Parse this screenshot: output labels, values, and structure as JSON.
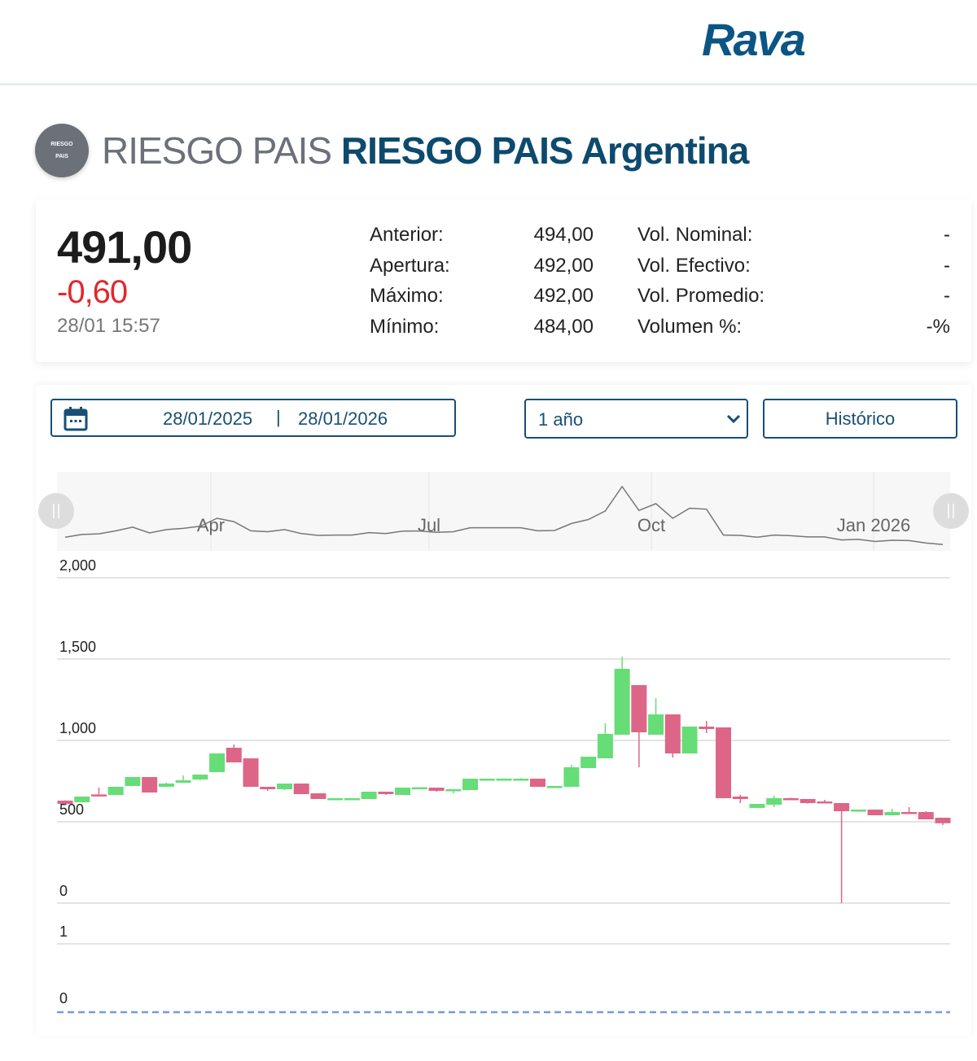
{
  "header": {
    "logo": "Rava"
  },
  "title": {
    "badge_line1": "RIESGO",
    "badge_line2": "PAIS",
    "prefix": "RIESGO PAIS",
    "name": "RIESGO PAIS Argentina"
  },
  "quote": {
    "price": "491,00",
    "change": "-0,60",
    "time": "28/01 15:57",
    "change_color": "#e0282e"
  },
  "stats_left": [
    {
      "label": "Anterior:",
      "value": "494,00"
    },
    {
      "label": "Apertura:",
      "value": "492,00"
    },
    {
      "label": "Máximo:",
      "value": "492,00"
    },
    {
      "label": "Mínimo:",
      "value": "484,00"
    }
  ],
  "stats_right": [
    {
      "label": "Vol. Nominal:",
      "value": "-"
    },
    {
      "label": "Vol. Efectivo:",
      "value": "-"
    },
    {
      "label": "Vol. Promedio:",
      "value": "-"
    },
    {
      "label": "Volumen %:",
      "value": "-%"
    }
  ],
  "controls": {
    "date_from": "28/01/2025",
    "date_sep": "|",
    "date_to": "28/01/2026",
    "range_selected": "1 año",
    "historico_label": "Histórico"
  },
  "chart_data": {
    "type": "candlestick",
    "colors": {
      "up": "#66dd77",
      "down": "#dd6688",
      "volume_line": "#6f9be8"
    },
    "navigator_labels": [
      "Apr",
      "Jul",
      "Oct",
      "Jan 2026"
    ],
    "y_ticks": [
      "2,000",
      "1,500",
      "1,000",
      "500",
      "0"
    ],
    "y_values": [
      2000,
      1500,
      1000,
      500,
      0
    ],
    "ylim": [
      0,
      2000
    ],
    "volume_ticks": [
      "1",
      "0"
    ],
    "volume_values": [
      1,
      0
    ],
    "grid": true,
    "candles_ohlc": [
      [
        630,
        632,
        608,
        610
      ],
      [
        620,
        655,
        618,
        655
      ],
      [
        668,
        710,
        665,
        665
      ],
      [
        665,
        715,
        665,
        715
      ],
      [
        720,
        775,
        720,
        775
      ],
      [
        775,
        775,
        680,
        680
      ],
      [
        715,
        740,
        715,
        735
      ],
      [
        740,
        785,
        740,
        755
      ],
      [
        760,
        790,
        755,
        790
      ],
      [
        805,
        920,
        805,
        920
      ],
      [
        955,
        975,
        865,
        865
      ],
      [
        890,
        890,
        715,
        715
      ],
      [
        715,
        715,
        690,
        700
      ],
      [
        700,
        735,
        695,
        735
      ],
      [
        735,
        735,
        670,
        670
      ],
      [
        675,
        675,
        640,
        640
      ],
      [
        640,
        645,
        640,
        645
      ],
      [
        640,
        645,
        640,
        645
      ],
      [
        640,
        685,
        640,
        685
      ],
      [
        685,
        685,
        665,
        670
      ],
      [
        665,
        710,
        665,
        710
      ],
      [
        710,
        712,
        710,
        712
      ],
      [
        710,
        710,
        685,
        690
      ],
      [
        690,
        700,
        675,
        700
      ],
      [
        695,
        765,
        695,
        765
      ],
      [
        760,
        765,
        758,
        765
      ],
      [
        765,
        768,
        763,
        765
      ],
      [
        765,
        768,
        763,
        765
      ],
      [
        765,
        765,
        715,
        715
      ],
      [
        715,
        720,
        715,
        720
      ],
      [
        715,
        850,
        715,
        835
      ],
      [
        830,
        900,
        830,
        900
      ],
      [
        890,
        1105,
        890,
        1040
      ],
      [
        1035,
        1515,
        1035,
        1440
      ],
      [
        1340,
        1340,
        835,
        1050
      ],
      [
        1035,
        1260,
        1035,
        1160
      ],
      [
        1160,
        1160,
        895,
        920
      ],
      [
        920,
        1085,
        920,
        1085
      ],
      [
        1085,
        1120,
        1045,
        1070
      ],
      [
        1080,
        1080,
        645,
        645
      ],
      [
        655,
        665,
        615,
        640
      ],
      [
        585,
        610,
        585,
        610
      ],
      [
        605,
        660,
        590,
        645
      ],
      [
        645,
        648,
        635,
        635
      ],
      [
        640,
        640,
        612,
        615
      ],
      [
        625,
        635,
        615,
        615
      ],
      [
        615,
        615,
        0,
        565
      ],
      [
        565,
        575,
        565,
        575
      ],
      [
        575,
        575,
        540,
        540
      ],
      [
        540,
        580,
        540,
        560
      ],
      [
        560,
        590,
        555,
        555
      ],
      [
        560,
        565,
        515,
        515
      ],
      [
        525,
        525,
        480,
        491
      ]
    ],
    "volume": 0
  }
}
